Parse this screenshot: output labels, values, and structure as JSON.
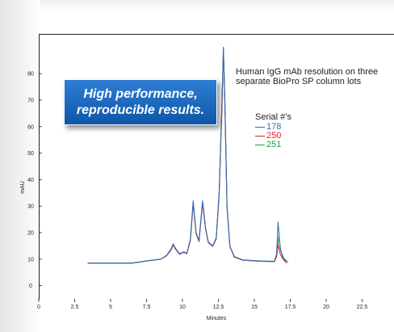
{
  "chart_data": {
    "type": "line",
    "xlabel": "Minutes",
    "ylabel": "mAU",
    "xlim": [
      0,
      25
    ],
    "ylim": [
      -5,
      95
    ],
    "xticks": [
      0,
      2.5,
      5,
      7.5,
      10,
      12.5,
      15,
      17.5,
      20,
      22.5
    ],
    "yticks": [
      0,
      10,
      20,
      30,
      40,
      50,
      60,
      70,
      80
    ],
    "xtick_labels": [
      "0",
      "2.5",
      "5",
      "7.5",
      "10",
      "12.5",
      "15",
      "17.5",
      "20",
      "22.5"
    ],
    "ytick_labels": [
      "0",
      "10",
      "20",
      "30",
      "40",
      "50",
      "60",
      "70",
      "80"
    ],
    "grid": false,
    "legend_placement": "right",
    "annotation": "Human IgG mAb resolution on three separate BioPro SP column lots",
    "callout": [
      "High performance,",
      "reproducible results."
    ],
    "legend_title": "Serial #’s",
    "series": [
      {
        "name": "178",
        "color": "#2f6fb8",
        "points": [
          [
            3.4,
            8.5
          ],
          [
            6.5,
            8.5
          ],
          [
            7.5,
            9.3
          ],
          [
            8.5,
            10.0
          ],
          [
            8.9,
            11.5
          ],
          [
            9.2,
            13.8
          ],
          [
            9.35,
            15.8
          ],
          [
            9.5,
            14.2
          ],
          [
            9.8,
            12.0
          ],
          [
            10.1,
            12.8
          ],
          [
            10.3,
            12.2
          ],
          [
            10.55,
            17.5
          ],
          [
            10.75,
            32.0
          ],
          [
            10.95,
            20.0
          ],
          [
            11.15,
            17.0
          ],
          [
            11.4,
            32.0
          ],
          [
            11.6,
            22.0
          ],
          [
            11.8,
            16.5
          ],
          [
            12.1,
            15.0
          ],
          [
            12.35,
            18.0
          ],
          [
            12.55,
            35.0
          ],
          [
            12.75,
            70.0
          ],
          [
            12.85,
            90.0
          ],
          [
            12.95,
            70.0
          ],
          [
            13.1,
            30.0
          ],
          [
            13.3,
            15.0
          ],
          [
            13.6,
            11.0
          ],
          [
            14.2,
            9.7
          ],
          [
            15.5,
            9.3
          ],
          [
            16.4,
            9.2
          ],
          [
            16.55,
            12.0
          ],
          [
            16.65,
            24.0
          ],
          [
            16.8,
            14.0
          ],
          [
            17.0,
            10.5
          ],
          [
            17.2,
            9.0
          ]
        ]
      },
      {
        "name": "250",
        "color": "#e8202a",
        "points": [
          [
            3.4,
            8.5
          ],
          [
            6.5,
            8.5
          ],
          [
            7.5,
            9.3
          ],
          [
            8.5,
            10.0
          ],
          [
            8.9,
            11.3
          ],
          [
            9.2,
            13.4
          ],
          [
            9.35,
            15.3
          ],
          [
            9.5,
            13.9
          ],
          [
            9.8,
            11.8
          ],
          [
            10.1,
            12.6
          ],
          [
            10.3,
            12.0
          ],
          [
            10.55,
            17.0
          ],
          [
            10.75,
            31.0
          ],
          [
            10.95,
            19.5
          ],
          [
            11.15,
            16.6
          ],
          [
            11.4,
            31.2
          ],
          [
            11.6,
            21.5
          ],
          [
            11.8,
            16.2
          ],
          [
            12.1,
            14.8
          ],
          [
            12.35,
            17.6
          ],
          [
            12.55,
            34.0
          ],
          [
            12.75,
            68.5
          ],
          [
            12.85,
            89.0
          ],
          [
            12.95,
            69.0
          ],
          [
            13.1,
            29.5
          ],
          [
            13.3,
            14.8
          ],
          [
            13.6,
            10.8
          ],
          [
            14.2,
            9.6
          ],
          [
            15.5,
            9.2
          ],
          [
            16.4,
            9.1
          ],
          [
            16.55,
            11.0
          ],
          [
            16.65,
            15.5
          ],
          [
            16.8,
            12.0
          ],
          [
            17.0,
            10.0
          ],
          [
            17.25,
            8.5
          ]
        ]
      },
      {
        "name": "251",
        "color": "#1aa14a",
        "points": [
          [
            3.4,
            8.5
          ],
          [
            6.5,
            8.5
          ],
          [
            7.5,
            9.3
          ],
          [
            8.5,
            10.0
          ],
          [
            8.9,
            11.4
          ],
          [
            9.2,
            13.6
          ],
          [
            9.35,
            15.5
          ],
          [
            9.5,
            14.0
          ],
          [
            9.8,
            11.9
          ],
          [
            10.1,
            12.7
          ],
          [
            10.3,
            12.1
          ],
          [
            10.55,
            17.2
          ],
          [
            10.75,
            31.5
          ],
          [
            10.95,
            19.7
          ],
          [
            11.15,
            16.8
          ],
          [
            11.4,
            31.6
          ],
          [
            11.6,
            21.8
          ],
          [
            11.8,
            16.3
          ],
          [
            12.1,
            14.9
          ],
          [
            12.35,
            17.8
          ],
          [
            12.55,
            34.5
          ],
          [
            12.75,
            69.0
          ],
          [
            12.85,
            89.5
          ],
          [
            12.95,
            69.5
          ],
          [
            13.1,
            29.7
          ],
          [
            13.3,
            14.9
          ],
          [
            13.6,
            10.9
          ],
          [
            14.2,
            9.6
          ],
          [
            15.5,
            9.2
          ],
          [
            16.4,
            9.1
          ],
          [
            16.55,
            11.5
          ],
          [
            16.7,
            18.5
          ],
          [
            16.85,
            13.0
          ],
          [
            17.05,
            10.3
          ],
          [
            17.35,
            8.8
          ]
        ]
      }
    ]
  }
}
